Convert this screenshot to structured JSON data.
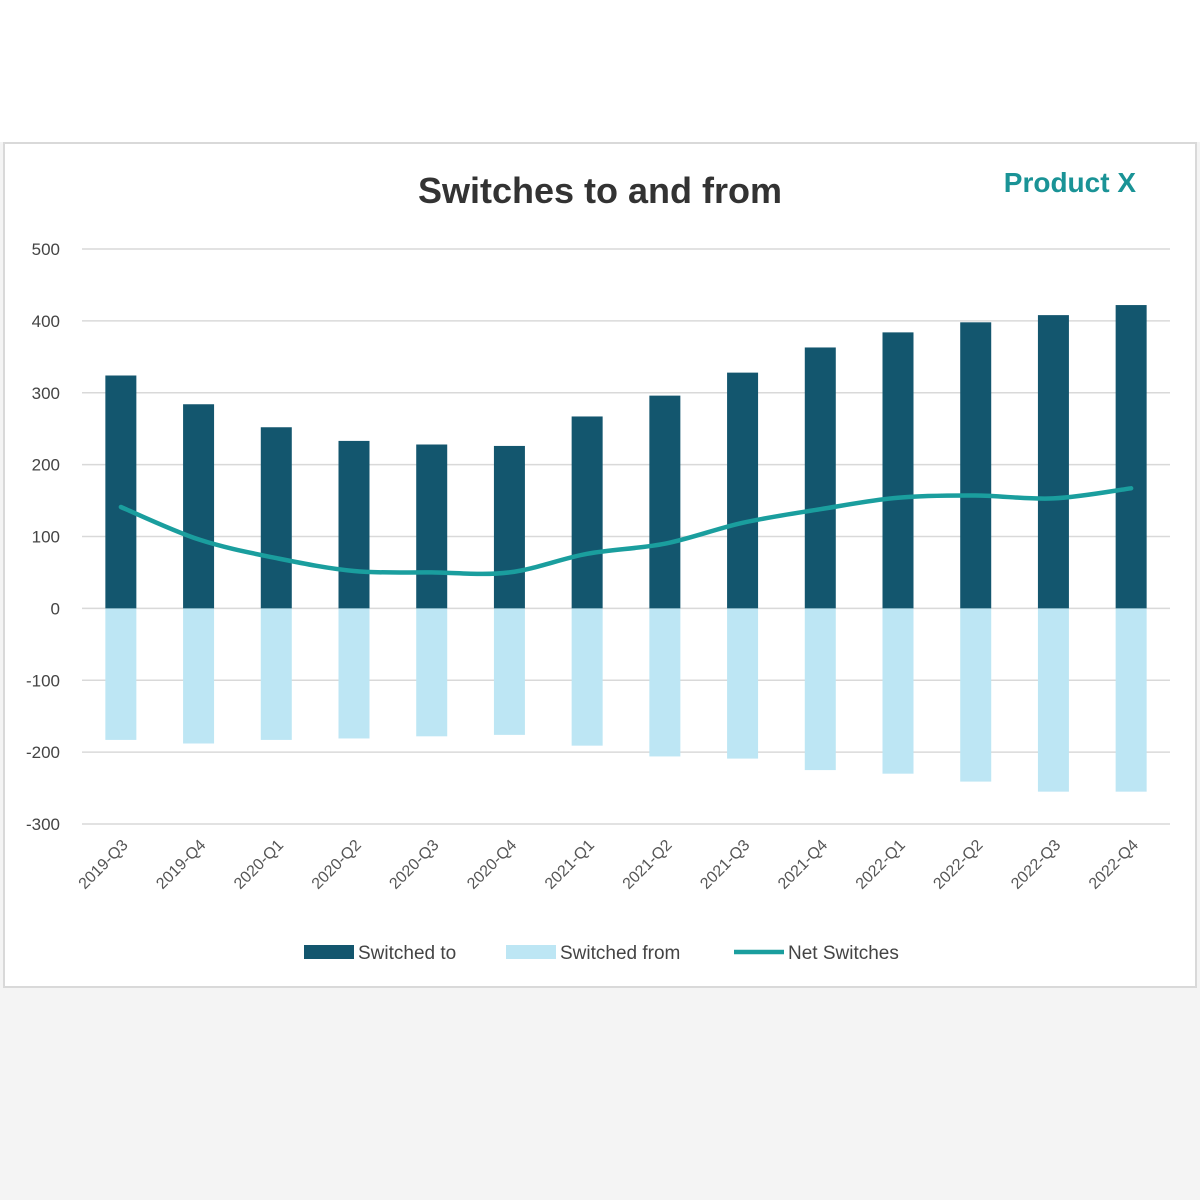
{
  "chart_data": {
    "type": "bar",
    "title": "Switches to and from",
    "subtitle": "Product X",
    "categories": [
      "2019-Q3",
      "2019-Q4",
      "2020-Q1",
      "2020-Q2",
      "2020-Q3",
      "2020-Q4",
      "2021-Q1",
      "2021-Q2",
      "2021-Q3",
      "2021-Q4",
      "2022-Q1",
      "2022-Q2",
      "2022-Q3",
      "2022-Q4"
    ],
    "series": [
      {
        "name": "Switched to",
        "type": "bar",
        "color": "#13566e",
        "values": [
          324,
          284,
          252,
          233,
          228,
          226,
          267,
          296,
          328,
          363,
          384,
          398,
          408,
          422
        ]
      },
      {
        "name": "Switched from",
        "type": "bar",
        "color": "#bde6f4",
        "values": [
          -183,
          -188,
          -183,
          -181,
          -178,
          -176,
          -191,
          -206,
          -209,
          -225,
          -230,
          -241,
          -255,
          -255
        ]
      },
      {
        "name": "Net Switches",
        "type": "line",
        "color": "#1a9e9e",
        "values": [
          141,
          96,
          70,
          52,
          50,
          50,
          76,
          90,
          119,
          138,
          154,
          157,
          153,
          167
        ]
      }
    ],
    "ylim": [
      -300,
      500
    ],
    "yticks": [
      500,
      400,
      300,
      200,
      100,
      0,
      -100,
      -200,
      -300
    ],
    "grid": true,
    "legend_position": "bottom"
  }
}
